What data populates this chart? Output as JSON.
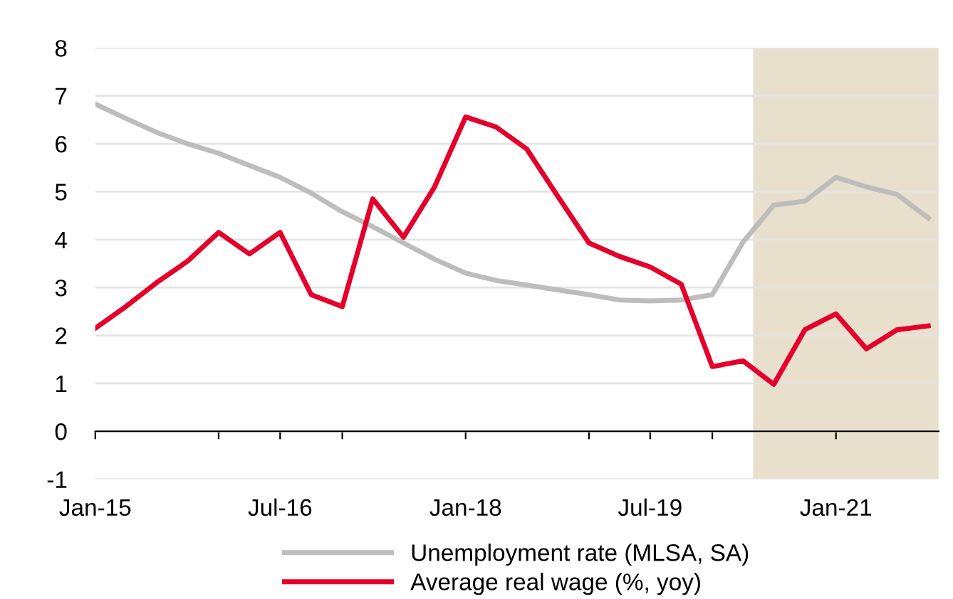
{
  "chart_data": {
    "type": "line",
    "x": [
      "2015-01",
      "2015-04",
      "2015-07",
      "2015-10",
      "2016-01",
      "2016-04",
      "2016-07",
      "2016-10",
      "2017-01",
      "2017-04",
      "2017-07",
      "2017-10",
      "2018-01",
      "2018-04",
      "2018-07",
      "2018-10",
      "2019-01",
      "2019-04",
      "2019-07",
      "2019-10",
      "2020-01",
      "2020-04",
      "2020-07",
      "2020-10",
      "2021-01",
      "2021-04",
      "2021-07",
      "2021-10"
    ],
    "series": [
      {
        "name": "Unemployment rate (MLSA, SA)",
        "color": "#bfbcbc",
        "values": [
          6.83,
          6.53,
          6.24,
          6.0,
          5.8,
          5.55,
          5.3,
          4.97,
          4.58,
          4.27,
          3.93,
          3.59,
          3.3,
          3.15,
          3.05,
          2.95,
          2.85,
          2.74,
          2.72,
          2.74,
          2.85,
          3.95,
          4.72,
          4.8,
          5.3,
          5.1,
          4.94,
          4.45
        ]
      },
      {
        "name": "Average real wage (%, yoy)",
        "color": "#e4002b",
        "values": [
          2.15,
          2.6,
          3.1,
          3.55,
          4.15,
          3.7,
          4.15,
          2.85,
          2.6,
          4.85,
          4.05,
          5.1,
          6.56,
          6.35,
          5.89,
          4.9,
          3.93,
          3.65,
          3.43,
          3.07,
          1.35,
          1.47,
          0.98,
          2.12,
          2.45,
          1.72,
          2.12,
          2.2
        ]
      }
    ],
    "xlim": [
      "2015-01",
      "2021-11"
    ],
    "xticks": [
      {
        "value": "2015-01",
        "label": "Jan-15"
      },
      {
        "value": "2016-01",
        "label": null
      },
      {
        "value": "2016-07",
        "label": "Jul-16"
      },
      {
        "value": "2017-01",
        "label": null
      },
      {
        "value": "2018-01",
        "label": "Jan-18"
      },
      {
        "value": "2019-01",
        "label": null
      },
      {
        "value": "2019-07",
        "label": "Jul-19"
      },
      {
        "value": "2020-01",
        "label": null
      },
      {
        "value": "2021-01",
        "label": "Jan-21"
      }
    ],
    "ylim": [
      -1,
      8
    ],
    "yticks": [
      -1,
      0,
      1,
      2,
      3,
      4,
      5,
      6,
      7,
      8
    ],
    "bands": [
      {
        "axis": "x",
        "from": "2020-05",
        "to": "2021-11",
        "color": "#e8e0cc"
      }
    ],
    "grid": "y",
    "legend": "bottom",
    "marker": "none",
    "line_style": "solid"
  }
}
